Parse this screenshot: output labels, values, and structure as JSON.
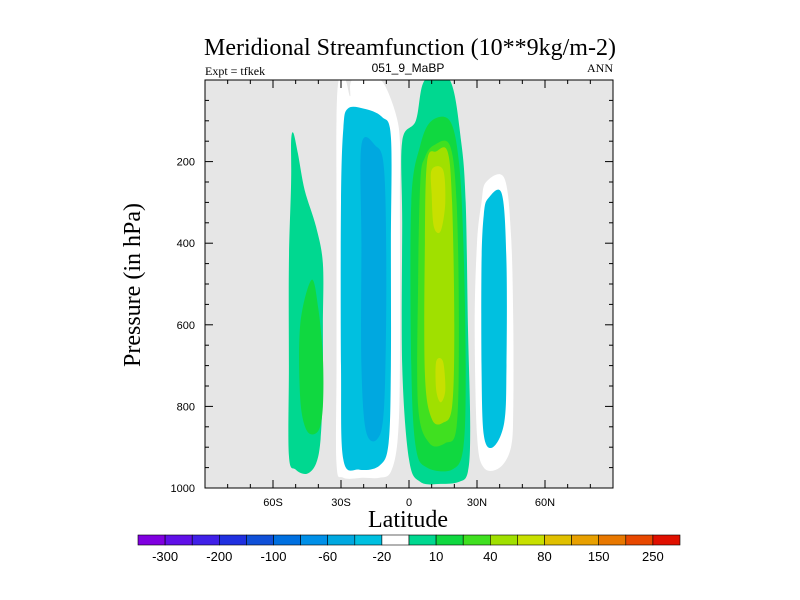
{
  "chart_data": {
    "type": "contour",
    "title": "Meridional Streamfunction (10**9kg/m-2)",
    "left_label": "Expt = tfkek",
    "center_label": "051_9_MaBP",
    "right_label": "ANN",
    "xlabel": "Latitude",
    "ylabel": "Pressure (in hPa)",
    "x_ticks": [
      {
        "value": -60,
        "label": "60S"
      },
      {
        "value": -30,
        "label": "30S"
      },
      {
        "value": 0,
        "label": "0"
      },
      {
        "value": 30,
        "label": "30N"
      },
      {
        "value": 60,
        "label": "60N"
      }
    ],
    "y_ticks": [
      200,
      400,
      600,
      800,
      1000
    ],
    "xlim": [
      -90,
      90
    ],
    "ylim": [
      0,
      1000
    ],
    "y_inverted": true,
    "background_color": "#e6e6e6",
    "levels": [
      -300,
      -250,
      -200,
      -150,
      -100,
      -80,
      -60,
      -40,
      -20,
      -10,
      10,
      20,
      40,
      60,
      80,
      100,
      150,
      200,
      250,
      300
    ],
    "colorbar_labels": [
      "-300",
      "-200",
      "-100",
      "-60",
      "-20",
      "10",
      "40",
      "80",
      "150",
      "250"
    ],
    "colorbar_colors": [
      "#8000e0",
      "#6010e8",
      "#4020e8",
      "#2030e0",
      "#1050d8",
      "#0070e0",
      "#0090e8",
      "#00a8e0",
      "#00c0e0",
      "#ffffff",
      "#00d890",
      "#10d840",
      "#40e020",
      "#a0e000",
      "#c8e000",
      "#e0c000",
      "#e8a000",
      "#e87800",
      "#e84800",
      "#e01000"
    ],
    "fields": [
      {
        "name": "sh_outer_positive",
        "polygons": [
          {
            "level": 10,
            "points": [
              [
                -51,
                130
              ],
              [
                -49,
                180
              ],
              [
                -46,
                270
              ],
              [
                -41,
                360
              ],
              [
                -38,
                450
              ],
              [
                -38,
                600
              ],
              [
                -38,
                750
              ],
              [
                -39,
                880
              ],
              [
                -41,
                940
              ],
              [
                -45,
                965
              ],
              [
                -50,
                955
              ],
              [
                -53,
                920
              ],
              [
                -53,
                700
              ],
              [
                -53,
                450
              ],
              [
                -52,
                250
              ],
              [
                -52,
                150
              ]
            ]
          },
          {
            "level": 20,
            "points": [
              [
                -43,
                490
              ],
              [
                -40,
                560
              ],
              [
                -38,
                680
              ],
              [
                -38,
                800
              ],
              [
                -40,
                860
              ],
              [
                -45,
                860
              ],
              [
                -48,
                780
              ],
              [
                -48,
                600
              ]
            ]
          }
        ]
      },
      {
        "name": "sh_negative",
        "polygons": [
          {
            "level": -10,
            "points": [
              [
                -31,
                0
              ],
              [
                -28,
                0
              ],
              [
                -26,
                40
              ],
              [
                -25,
                0
              ],
              [
                -15,
                0
              ],
              [
                -11,
                10
              ],
              [
                -6,
                80
              ],
              [
                -4,
                150
              ],
              [
                -4,
                300
              ],
              [
                -4,
                700
              ],
              [
                -5,
                880
              ],
              [
                -8,
                960
              ],
              [
                -13,
                975
              ],
              [
                -20,
                975
              ],
              [
                -29,
                975
              ],
              [
                -32,
                940
              ],
              [
                -32,
                700
              ],
              [
                -32,
                300
              ],
              [
                -32,
                100
              ]
            ]
          },
          {
            "level": -20,
            "points": [
              [
                -27,
                70
              ],
              [
                -20,
                70
              ],
              [
                -12,
                90
              ],
              [
                -8,
                140
              ],
              [
                -8,
                400
              ],
              [
                -8,
                700
              ],
              [
                -9,
                890
              ],
              [
                -13,
                945
              ],
              [
                -22,
                955
              ],
              [
                -29,
                930
              ],
              [
                -30,
                700
              ],
              [
                -30,
                300
              ],
              [
                -29,
                120
              ]
            ]
          },
          {
            "level": -40,
            "points": [
              [
                -21,
                160
              ],
              [
                -15,
                160
              ],
              [
                -11,
                220
              ],
              [
                -10,
                500
              ],
              [
                -11,
                800
              ],
              [
                -14,
                880
              ],
              [
                -19,
                860
              ],
              [
                -21,
                700
              ],
              [
                -21,
                400
              ]
            ]
          }
        ]
      },
      {
        "name": "nh_positive",
        "polygons": [
          {
            "level": 10,
            "points": [
              [
                3,
                100
              ],
              [
                7,
                0
              ],
              [
                18,
                0
              ],
              [
                23,
                150
              ],
              [
                25,
                300
              ],
              [
                26,
                600
              ],
              [
                27,
                850
              ],
              [
                26,
                960
              ],
              [
                22,
                985
              ],
              [
                14,
                990
              ],
              [
                5,
                985
              ],
              [
                0,
                930
              ],
              [
                -3,
                700
              ],
              [
                -3,
                350
              ],
              [
                -3,
                150
              ]
            ]
          },
          {
            "level": 20,
            "points": [
              [
                5,
                160
              ],
              [
                10,
                100
              ],
              [
                18,
                100
              ],
              [
                22,
                200
              ],
              [
                24,
                400
              ],
              [
                25,
                700
              ],
              [
                24,
                900
              ],
              [
                19,
                955
              ],
              [
                8,
                950
              ],
              [
                3,
                900
              ],
              [
                1,
                700
              ],
              [
                1,
                300
              ]
            ]
          },
          {
            "level": 40,
            "points": [
              [
                7,
                190
              ],
              [
                11,
                160
              ],
              [
                18,
                160
              ],
              [
                21,
                300
              ],
              [
                22,
                600
              ],
              [
                21,
                850
              ],
              [
                16,
                890
              ],
              [
                9,
                890
              ],
              [
                4,
                800
              ],
              [
                4,
                500
              ],
              [
                5,
                250
              ]
            ]
          },
          {
            "level": 60,
            "points": [
              [
                8,
                200
              ],
              [
                12,
                175
              ],
              [
                17,
                175
              ],
              [
                19,
                300
              ],
              [
                20,
                600
              ],
              [
                19,
                800
              ],
              [
                15,
                840
              ],
              [
                10,
                830
              ],
              [
                7,
                720
              ],
              [
                7,
                400
              ]
            ]
          },
          {
            "level": 80,
            "points": [
              [
                10,
                220
              ],
              [
                15,
                220
              ],
              [
                16,
                300
              ],
              [
                14,
                370
              ],
              [
                11,
                360
              ],
              [
                10,
                280
              ]
            ]
          },
          {
            "level": 80,
            "points": [
              [
                12,
                690
              ],
              [
                15,
                690
              ],
              [
                16,
                760
              ],
              [
                14,
                790
              ],
              [
                12,
                760
              ]
            ]
          }
        ]
      },
      {
        "name": "nh_negative",
        "polygons": [
          {
            "level": -10,
            "points": [
              [
                34,
                250
              ],
              [
                42,
                240
              ],
              [
                45,
                380
              ],
              [
                46,
                600
              ],
              [
                46,
                800
              ],
              [
                45,
                900
              ],
              [
                40,
                950
              ],
              [
                33,
                950
              ],
              [
                30,
                870
              ],
              [
                29,
                600
              ],
              [
                30,
                400
              ],
              [
                32,
                300
              ]
            ]
          },
          {
            "level": -20,
            "points": [
              [
                35,
                290
              ],
              [
                41,
                280
              ],
              [
                43,
                450
              ],
              [
                43,
                700
              ],
              [
                42,
                840
              ],
              [
                37,
                900
              ],
              [
                33,
                870
              ],
              [
                32,
                700
              ],
              [
                32,
                450
              ],
              [
                33,
                330
              ]
            ]
          }
        ]
      }
    ]
  }
}
